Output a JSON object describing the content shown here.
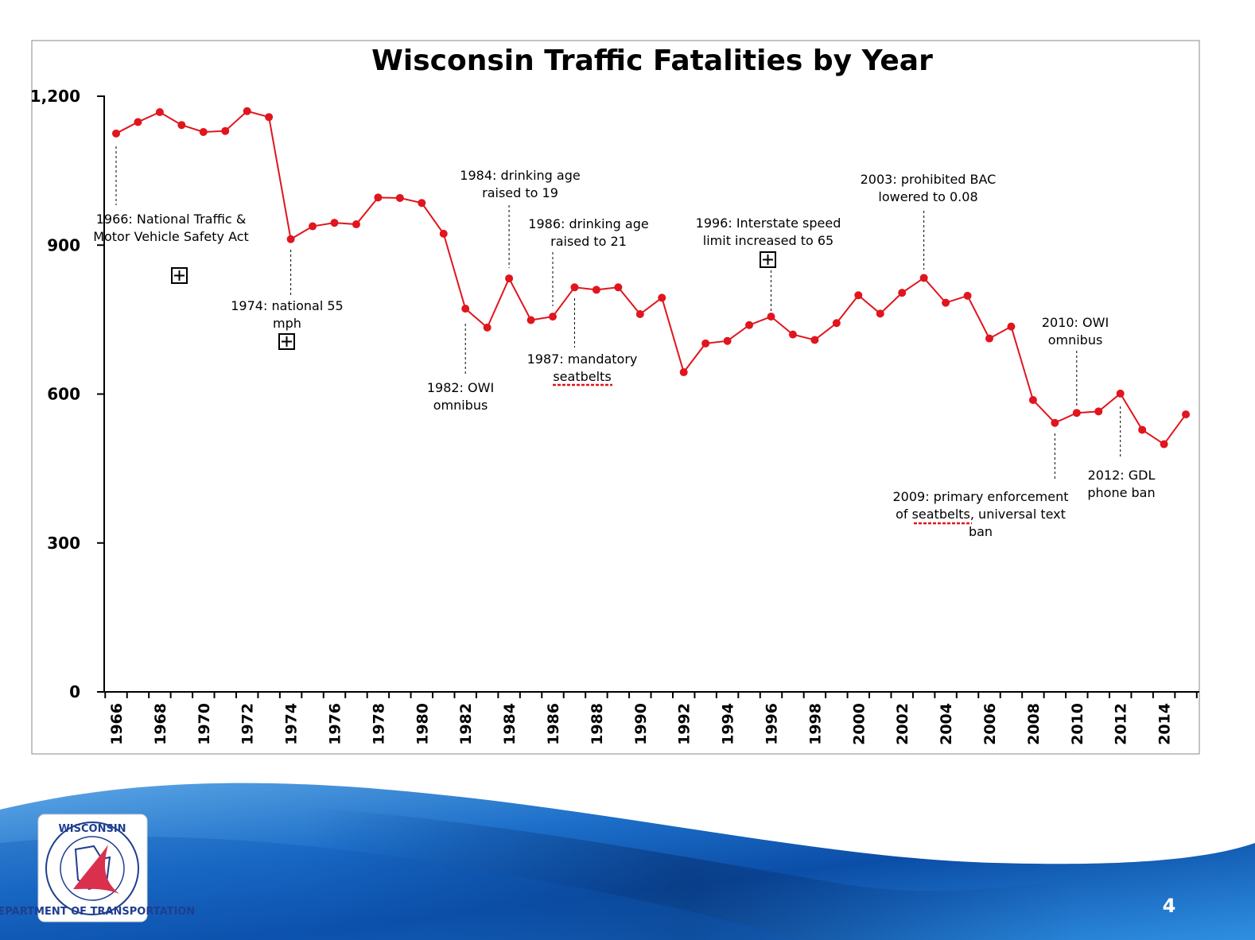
{
  "slide": {
    "page_number": "4",
    "logo": {
      "top_text": "WISCONSIN",
      "ring_text": "DEPARTMENT OF TRANSPORTATION"
    }
  },
  "chart_data": {
    "type": "line",
    "title": "Wisconsin Traffic Fatalities by Year",
    "xlabel": "",
    "ylabel": "",
    "ylim": [
      0,
      1200
    ],
    "yticks": [
      0,
      300,
      600,
      900,
      1200
    ],
    "ytick_labels": [
      "0",
      "300",
      "600",
      "900",
      "1,200"
    ],
    "xtick_labels": [
      "1966",
      "1968",
      "1970",
      "1972",
      "1974",
      "1976",
      "1978",
      "1980",
      "1982",
      "1984",
      "1986",
      "1988",
      "1990",
      "1992",
      "1994",
      "1996",
      "1998",
      "2000",
      "2002",
      "2004",
      "2006",
      "2008",
      "2010",
      "2012",
      "2014"
    ],
    "grid": false,
    "series_color": "#e0151e",
    "x": [
      1966,
      1967,
      1968,
      1969,
      1970,
      1971,
      1972,
      1973,
      1974,
      1975,
      1976,
      1977,
      1978,
      1979,
      1980,
      1981,
      1982,
      1983,
      1984,
      1985,
      1986,
      1987,
      1988,
      1989,
      1990,
      1991,
      1992,
      1993,
      1994,
      1995,
      1996,
      1997,
      1998,
      1999,
      2000,
      2001,
      2002,
      2003,
      2004,
      2005,
      2006,
      2007,
      2008,
      2009,
      2010,
      2011,
      2012,
      2013,
      2014,
      2015
    ],
    "values": [
      1125,
      1148,
      1168,
      1142,
      1128,
      1130,
      1170,
      1158,
      912,
      938,
      945,
      942,
      996,
      995,
      985,
      923,
      772,
      734,
      833,
      749,
      756,
      815,
      810,
      815,
      761,
      794,
      644,
      702,
      707,
      739,
      756,
      720,
      709,
      743,
      799,
      762,
      804,
      834,
      784,
      798,
      712,
      736,
      588,
      542,
      562,
      565,
      601,
      528,
      499,
      559
    ],
    "annotations": [
      {
        "text_lines": [
          "1966: National Traffic &",
          "Motor Vehicle Safety Act"
        ],
        "year": 1966,
        "value": 1125
      },
      {
        "text_lines": [
          "1974: national 55",
          "mph"
        ],
        "year": 1974,
        "value": 912
      },
      {
        "text_lines": [
          "1982: OWI",
          "omnibus"
        ],
        "year": 1982,
        "value": 772
      },
      {
        "text_lines": [
          "1984: drinking age",
          "raised to 19"
        ],
        "year": 1984,
        "value": 833
      },
      {
        "text_lines": [
          "1986: drinking age",
          "raised to 21"
        ],
        "year": 1986,
        "value": 756
      },
      {
        "text_lines": [
          "1987: mandatory",
          "seatbelts"
        ],
        "year": 1987,
        "value": 815
      },
      {
        "text_lines": [
          "1996: Interstate speed",
          "limit increased to 65"
        ],
        "year": 1996,
        "value": 756
      },
      {
        "text_lines": [
          "2003: prohibited BAC",
          "lowered to 0.08"
        ],
        "year": 2003,
        "value": 834
      },
      {
        "text_lines": [
          "2009: primary enforcement",
          "of seatbelts, universal text",
          "ban"
        ],
        "year": 2009,
        "value": 542
      },
      {
        "text_lines": [
          "2010: OWI",
          "omnibus"
        ],
        "year": 2010,
        "value": 562
      },
      {
        "text_lines": [
          "2012: GDL",
          "phone ban"
        ],
        "year": 2012,
        "value": 601
      }
    ]
  }
}
